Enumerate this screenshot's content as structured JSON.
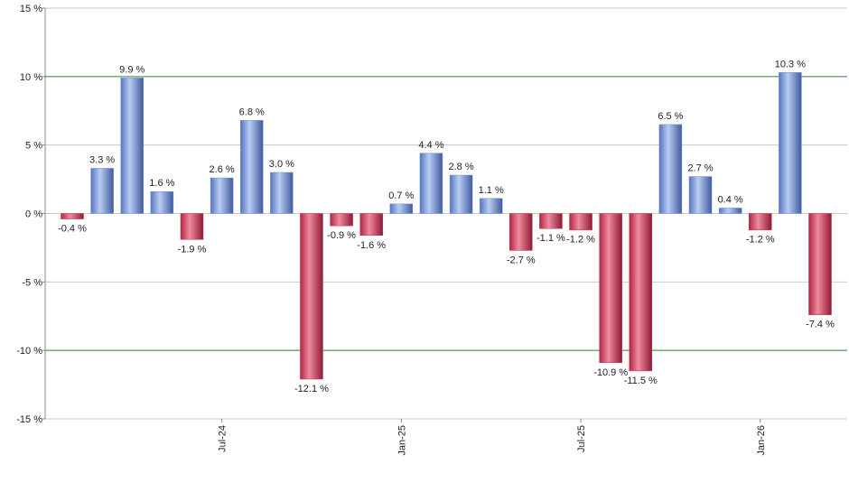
{
  "chart_data": {
    "type": "bar",
    "categories": [
      null,
      null,
      null,
      null,
      null,
      "Jul-24",
      null,
      null,
      null,
      null,
      null,
      "Jan-25",
      null,
      null,
      null,
      null,
      null,
      "Jul-25",
      null,
      null,
      null,
      null,
      null,
      "Jan-26",
      null,
      null
    ],
    "values": [
      -0.4,
      3.3,
      9.9,
      1.6,
      -1.9,
      2.6,
      6.8,
      3.0,
      -12.1,
      -0.9,
      -1.6,
      0.7,
      4.4,
      2.8,
      1.1,
      -2.7,
      -1.1,
      -1.2,
      -10.9,
      -11.5,
      6.5,
      2.7,
      0.4,
      -1.2,
      10.3,
      -7.4
    ],
    "value_labels": [
      "-0.4 %",
      "3.3 %",
      "9.9 %",
      "1.6 %",
      "-1.9 %",
      "2.6 %",
      "6.8 %",
      "3.0 %",
      "-12.1 %",
      "-0.9 %",
      "-1.6 %",
      "0.7 %",
      "4.4 %",
      "2.8 %",
      "1.1 %",
      "-2.7 %",
      "-1.1 %",
      "-1.2 %",
      "-10.9 %",
      "-11.5 %",
      "6.5 %",
      "2.7 %",
      "0.4 %",
      "-1.2 %",
      "10.3 %",
      "-7.4 %"
    ],
    "positive_color": "#6f8fd6",
    "negative_color": "#c8304f",
    "ylim": [
      -15,
      15
    ],
    "yticks": [
      {
        "value": -15,
        "label": "-15 %"
      },
      {
        "value": -10,
        "label": "-10 %"
      },
      {
        "value": -5,
        "label": "-5 %"
      },
      {
        "value": 0,
        "label": "0 %"
      },
      {
        "value": 5,
        "label": "5 %"
      },
      {
        "value": 10,
        "label": "10 %"
      },
      {
        "value": 15,
        "label": "15 %"
      }
    ],
    "grid": true,
    "grid_color": "#c8c8c8",
    "major_grid_step": 10,
    "major_grid_color": "#2e7d32"
  }
}
